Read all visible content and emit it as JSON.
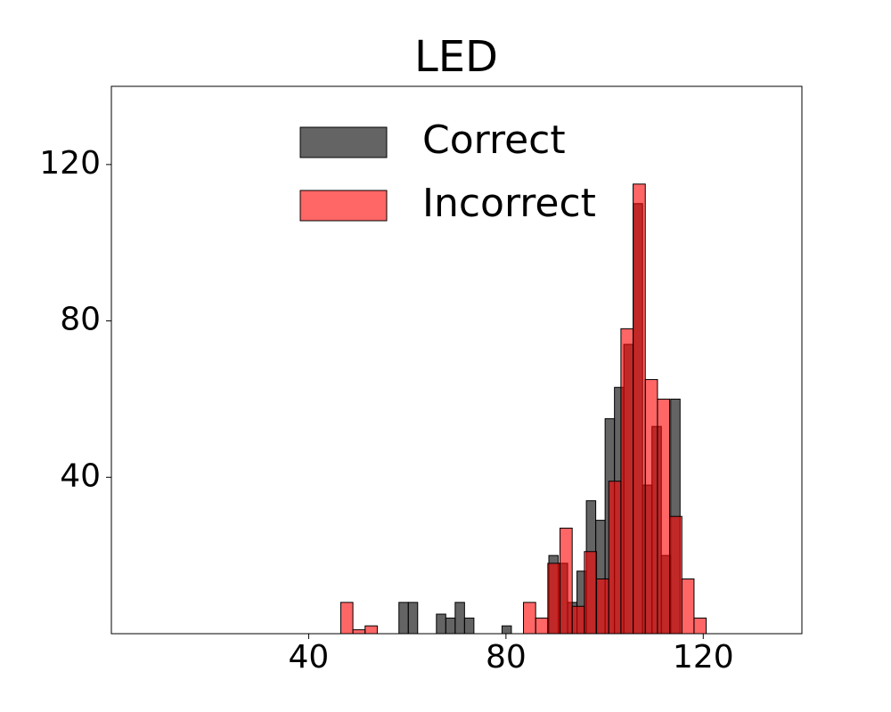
{
  "chart_data": {
    "type": "histogram",
    "title": "LED",
    "xlim": [
      0,
      140
    ],
    "ylim": [
      0,
      140
    ],
    "xticks": [
      40,
      80,
      120
    ],
    "yticks": [
      40,
      80,
      120
    ],
    "legend": "upper center",
    "series": [
      {
        "name": "Correct",
        "color": "#222222",
        "alpha": 0.7,
        "bins": [
          58.3,
          60.2,
          62.1,
          64.0,
          65.9,
          67.8,
          69.7,
          71.6,
          73.5,
          75.4,
          77.3,
          79.2,
          81.1,
          83.0,
          84.9,
          86.8,
          88.7,
          90.6,
          92.5,
          94.4,
          96.3,
          98.2,
          100.1,
          102.0,
          103.9,
          105.8,
          107.7,
          109.6,
          111.5,
          113.4,
          115.3
        ],
        "values": [
          8,
          8,
          0,
          0,
          5,
          4,
          8,
          4,
          0,
          0,
          0,
          2,
          0,
          0,
          0,
          0,
          20,
          18,
          8,
          16,
          34,
          29,
          55,
          63,
          74,
          110,
          38,
          53,
          20,
          60
        ]
      },
      {
        "name": "Incorrect",
        "color": "#ff0000",
        "alpha": 0.6,
        "bins": [
          46.5,
          48.97,
          51.44,
          53.91,
          56.38,
          58.85,
          61.32,
          63.79,
          66.26,
          68.73,
          71.2,
          73.67,
          76.14,
          78.61,
          81.08,
          83.55,
          86.02,
          88.49,
          90.96,
          93.43,
          95.9,
          98.37,
          100.84,
          103.31,
          105.78,
          108.25,
          110.72,
          113.19,
          115.66,
          118.13,
          120.6
        ],
        "values": [
          8,
          1,
          2,
          0,
          0,
          0,
          0,
          0,
          0,
          0,
          0,
          0,
          0,
          0,
          0,
          8,
          4,
          18,
          27,
          7,
          21,
          14,
          39,
          78,
          115,
          65,
          60,
          30,
          14,
          4
        ]
      }
    ]
  }
}
